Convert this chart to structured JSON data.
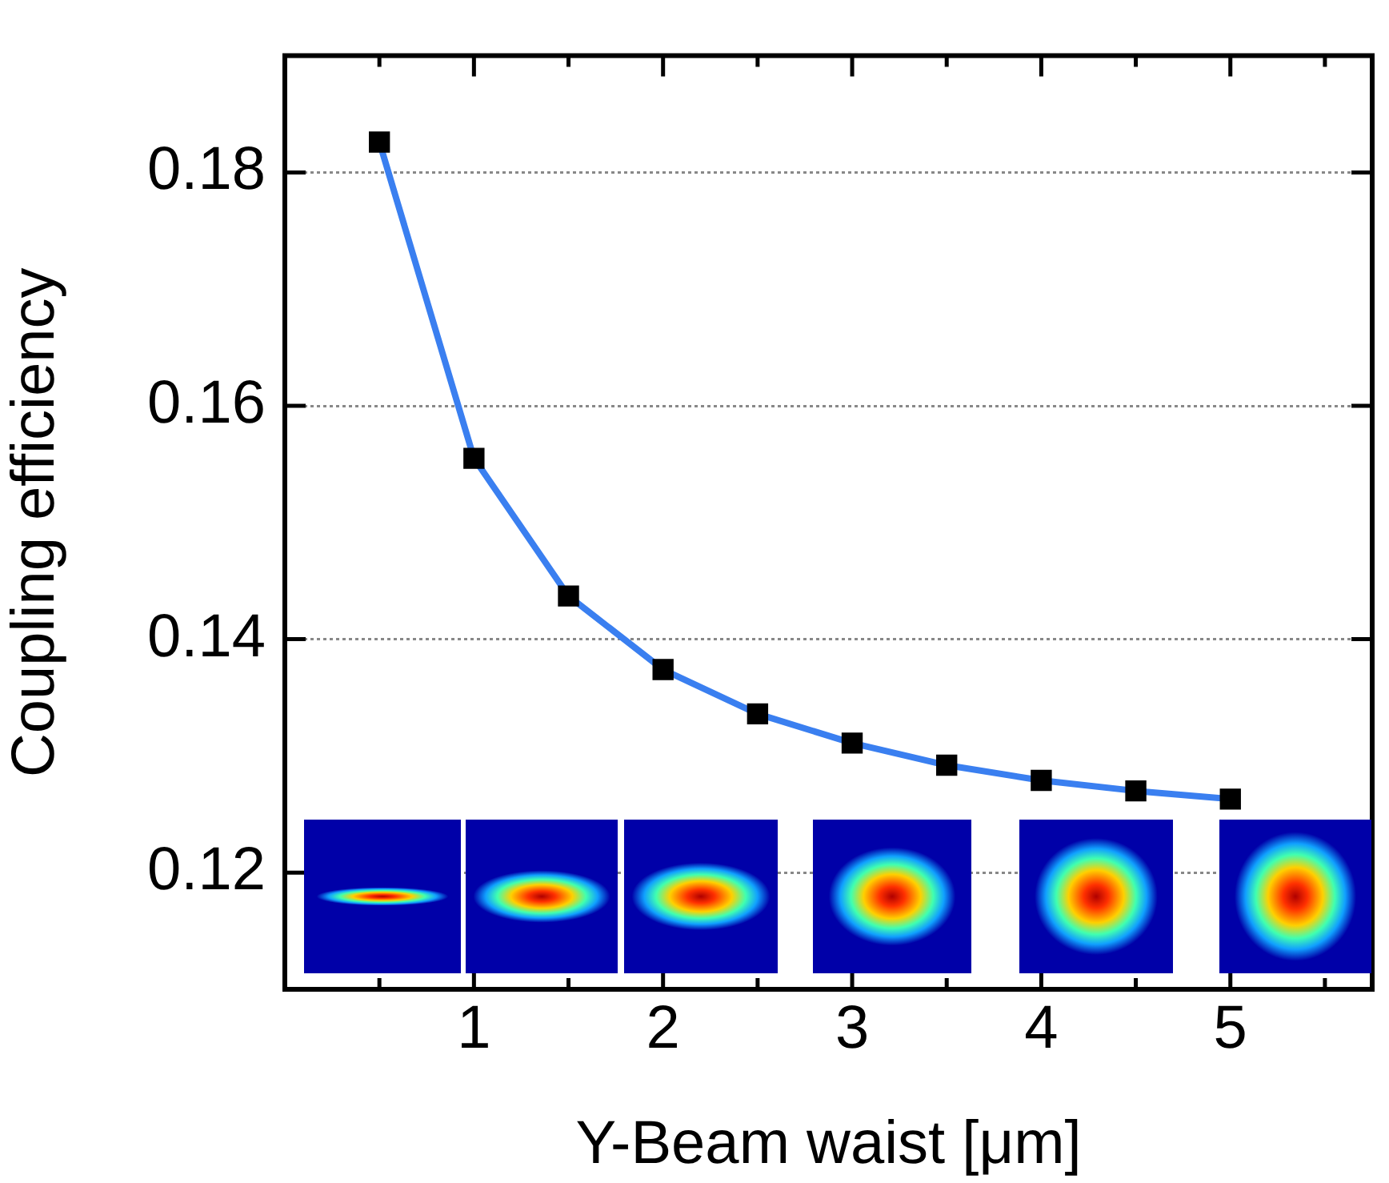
{
  "chart_data": {
    "type": "line",
    "xlabel": "Y-Beam waist [μm]",
    "ylabel": "Coupling efficiency",
    "x": [
      0.5,
      1,
      1.5,
      2,
      2.5,
      3,
      3.5,
      4,
      4.5,
      5
    ],
    "series": [
      {
        "color": "#3a7ff0",
        "values": [
          0.1826,
          0.1555,
          0.1437,
          0.1374,
          0.1336,
          0.1311,
          0.1292,
          0.1279,
          0.127,
          0.1263
        ]
      }
    ],
    "xlim": [
      0,
      5.75
    ],
    "xticks": [
      {
        "value": 0.5,
        "label": null
      },
      1,
      {
        "value": 1.5,
        "label": null
      },
      2,
      {
        "value": 2.5,
        "label": null
      },
      3,
      {
        "value": 3.5,
        "label": null
      },
      4,
      {
        "value": 4.5,
        "label": null
      },
      5,
      {
        "value": 5.5,
        "label": null
      }
    ],
    "ylim": [
      0.11,
      0.19
    ],
    "yticks": [
      0.12,
      0.14,
      0.16,
      0.18
    ],
    "grid": "y",
    "marker": "square",
    "line_style": "solid",
    "legend": false
  }
}
